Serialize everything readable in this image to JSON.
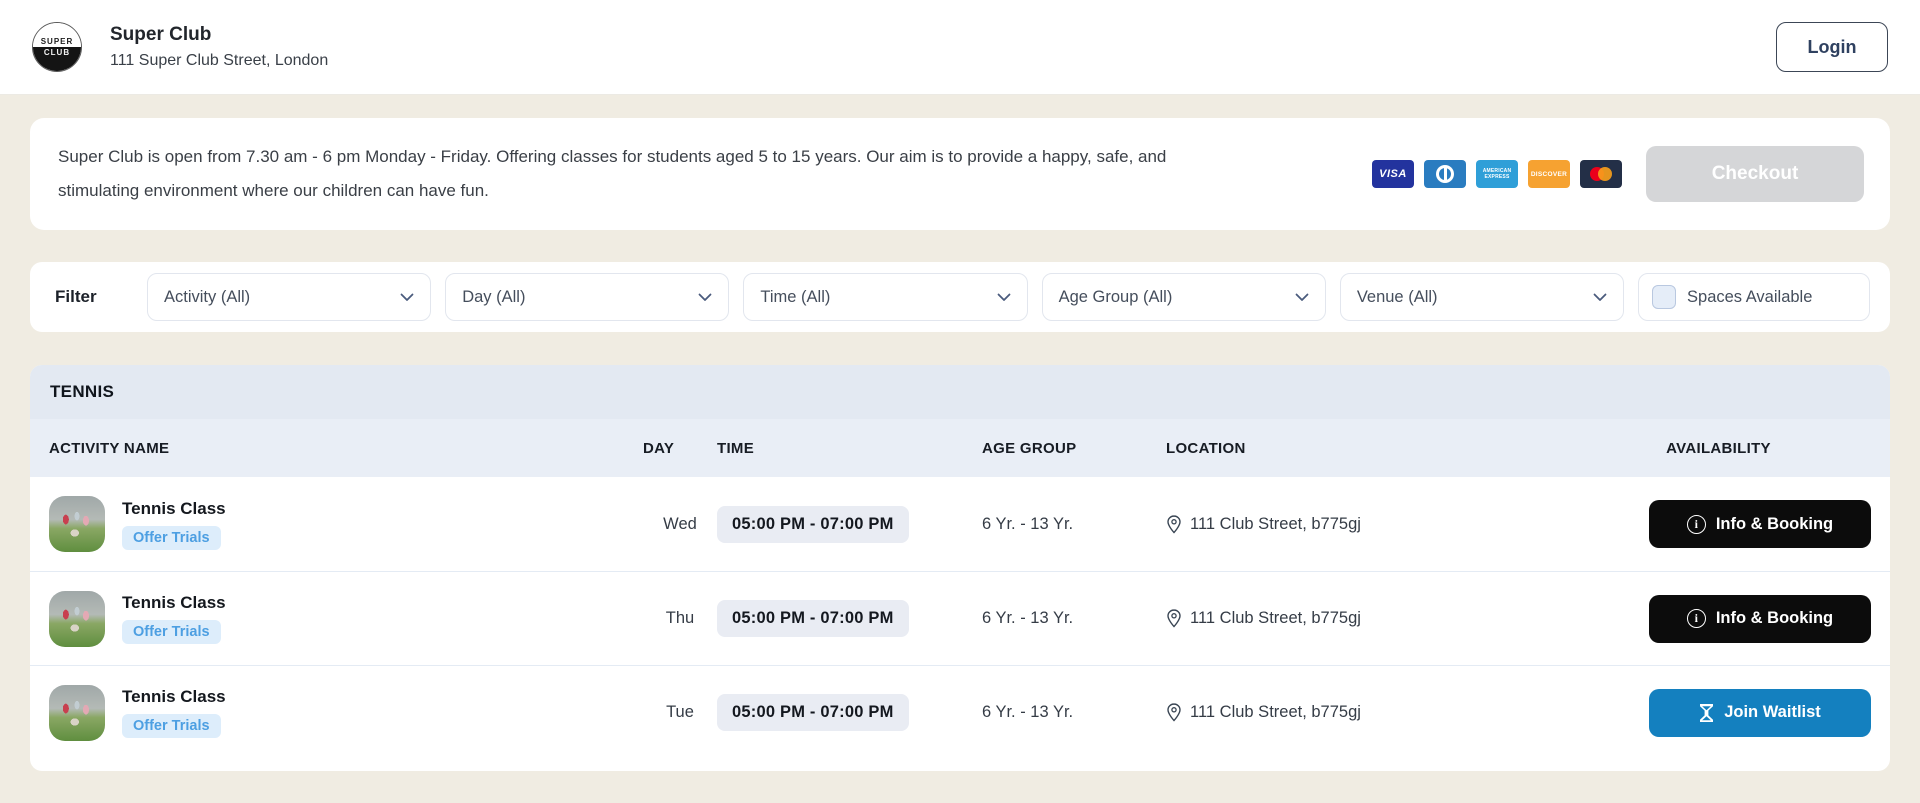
{
  "header": {
    "logo_top": "SUPER",
    "logo_bottom": "CLUB",
    "club_name": "Super Club",
    "club_address": "111 Super Club Street, London",
    "login_label": "Login"
  },
  "banner": {
    "text": "Super Club is open from 7.30 am - 6 pm Monday - Friday. Offering classes for students aged 5 to 15 years. Our aim is to provide a happy, safe, and stimulating environment where our children can have fun.",
    "payment_methods": [
      {
        "type": "visa",
        "label": "VISA"
      },
      {
        "type": "diners-club",
        "label": ""
      },
      {
        "type": "american-express",
        "label": "AMERICAN EXPRESS"
      },
      {
        "type": "discover",
        "label": "DISCOVER"
      },
      {
        "type": "mastercard",
        "label": ""
      }
    ],
    "checkout_label": "Checkout",
    "checkout_enabled": false
  },
  "filters": {
    "label": "Filter",
    "dropdowns": [
      {
        "label": "Activity (All)"
      },
      {
        "label": "Day (All)"
      },
      {
        "label": "Time (All)"
      },
      {
        "label": "Age Group (All)"
      },
      {
        "label": "Venue (All)"
      }
    ],
    "spaces_available_label": "Spaces Available",
    "spaces_available_checked": false
  },
  "table": {
    "section_title": "TENNIS",
    "columns": [
      "ACTIVITY NAME",
      "DAY",
      "TIME",
      "AGE GROUP",
      "LOCATION",
      "AVAILABILITY"
    ],
    "rows": [
      {
        "name": "Tennis Class",
        "badge": "Offer Trials",
        "day": "Wed",
        "time": "05:00 PM - 07:00 PM",
        "age": "6 Yr. - 13 Yr.",
        "location": "111 Club Street, b775gj",
        "action": "Info & Booking",
        "action_type": "info"
      },
      {
        "name": "Tennis Class",
        "badge": "Offer Trials",
        "day": "Thu",
        "time": "05:00 PM - 07:00 PM",
        "age": "6 Yr. - 13 Yr.",
        "location": "111 Club Street, b775gj",
        "action": "Info & Booking",
        "action_type": "info"
      },
      {
        "name": "Tennis Class",
        "badge": "Offer Trials",
        "day": "Tue",
        "time": "05:00 PM - 07:00 PM",
        "age": "6 Yr. - 13 Yr.",
        "location": "111 Club Street, b775gj",
        "action": "Join Waitlist",
        "action_type": "waitlist"
      }
    ]
  },
  "colors": {
    "page_background": "#f0ece2",
    "primary_blue": "#1480bf",
    "badge_blue_bg": "#ddedfb",
    "badge_blue_text": "#4d9fe2",
    "black_button": "#0c0c0c",
    "disabled_button": "#d5d6d8",
    "section_header_bg": "#e3e9f2",
    "column_header_bg": "#e9eef6"
  }
}
